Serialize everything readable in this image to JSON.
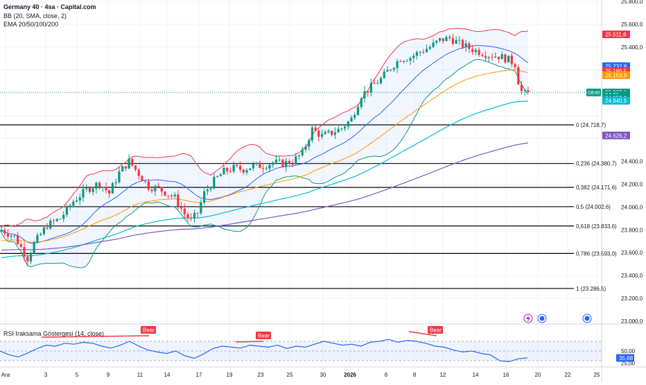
{
  "legend": {
    "symbol": "Germany 40 · 4sa · Capital.com",
    "bb": "BB (20, SMA, close, 2)",
    "ema": "EMA 20/50/100/200"
  },
  "rsi_legend": "RSI Iraksama Göstergesi (14, close)",
  "colors": {
    "up": "#089981",
    "down": "#f23645",
    "bb_band": "#f23645",
    "bb_basis": "#2962ff",
    "ema20": "#089981",
    "ema50": "#ff9800",
    "ema100": "#00bcd4",
    "ema200": "#7e57c2",
    "fib": "#000000",
    "rsi": "#2962ff",
    "bear_label": "#f23645"
  },
  "chart_data": [
    {
      "type": "candlestick",
      "title": "Germany 40 · 4sa · Capital.com",
      "x_tick_labels": [
        "Ara",
        "3",
        "5",
        "9",
        "11",
        "14",
        "17",
        "19",
        "23",
        "25",
        "30",
        "2026",
        "6",
        "8",
        "12",
        "14",
        "16",
        "20",
        "22",
        "25"
      ],
      "y_tick_labels": [
        "25.800,0",
        "25.600,0",
        "25.400,0",
        "24.400,0",
        "24.200,0",
        "24.000,0",
        "23.800,0",
        "23.600,0",
        "23.400,0",
        "23.200,0",
        "23.000,0"
      ],
      "ylim": [
        23000,
        25800
      ],
      "price_path": [
        [
          0,
          23800
        ],
        [
          4,
          23740
        ],
        [
          8,
          23550
        ],
        [
          10,
          23680
        ],
        [
          14,
          23840
        ],
        [
          18,
          23900
        ],
        [
          22,
          24050
        ],
        [
          26,
          24150
        ],
        [
          30,
          24210
        ],
        [
          33,
          24120
        ],
        [
          36,
          24300
        ],
        [
          39,
          24400
        ],
        [
          42,
          24290
        ],
        [
          45,
          24180
        ],
        [
          48,
          24160
        ],
        [
          50,
          24130
        ],
        [
          53,
          24080
        ],
        [
          56,
          23940
        ],
        [
          58,
          23880
        ],
        [
          60,
          23950
        ],
        [
          62,
          24120
        ],
        [
          65,
          24230
        ],
        [
          68,
          24310
        ],
        [
          71,
          24340
        ],
        [
          74,
          24330
        ],
        [
          77,
          24360
        ],
        [
          80,
          24360
        ],
        [
          83,
          24390
        ],
        [
          86,
          24380
        ],
        [
          89,
          24400
        ],
        [
          92,
          24470
        ],
        [
          95,
          24680
        ],
        [
          98,
          24620
        ],
        [
          101,
          24650
        ],
        [
          104,
          24690
        ],
        [
          107,
          24770
        ],
        [
          110,
          24980
        ],
        [
          113,
          25050
        ],
        [
          116,
          25120
        ],
        [
          119,
          25220
        ],
        [
          122,
          25300
        ],
        [
          125,
          25310
        ],
        [
          128,
          25360
        ],
        [
          131,
          25400
        ],
        [
          134,
          25460
        ],
        [
          137,
          25480
        ],
        [
          140,
          25430
        ],
        [
          143,
          25390
        ],
        [
          146,
          25360
        ],
        [
          149,
          25330
        ],
        [
          152,
          25320
        ],
        [
          155,
          25290
        ],
        [
          157,
          25250
        ],
        [
          158,
          25100
        ],
        [
          159,
          25010
        ],
        [
          160,
          24990
        ],
        [
          161,
          25003.1
        ]
      ],
      "fibonacci": [
        {
          "label": "0 (24.718,7)",
          "value": 24718.7
        },
        {
          "label": "0,236 (24.380,7)",
          "value": 24380.7
        },
        {
          "label": "0,382 (24.171,6)",
          "value": 24171.6
        },
        {
          "label": "0,5 (24.002,6)",
          "value": 24002.6
        },
        {
          "label": "0,618 (23.833,6)",
          "value": 23833.6
        },
        {
          "label": "0,786 (23.593,0)",
          "value": 23593.0
        },
        {
          "label": "1 (23.286,5)",
          "value": 23286.5
        }
      ],
      "price_badges": [
        {
          "text": "25.511,6",
          "value": 25511.6,
          "color": "#f23645"
        },
        {
          "text": "25.232,8",
          "value": 25232.8,
          "color": "#2962ff"
        },
        {
          "text": "25.189,5",
          "value": 25189.5,
          "color": "#f23645"
        },
        {
          "text": "25.153,9",
          "value": 25153.9,
          "color": "#ff9800"
        },
        {
          "text": "25.003,1",
          "value": 25003.1,
          "color": "#089981"
        },
        {
          "text": "04:21",
          "value": 24980,
          "color": "#089981"
        },
        {
          "text": "24.953,9",
          "value": 24953.9,
          "color": "#089981"
        },
        {
          "text": "24.940,5",
          "value": 24930,
          "color": "#00bcd4"
        },
        {
          "text": "24.626,2",
          "value": 24626.2,
          "color": "#7e57c2"
        }
      ],
      "symbol_tag": "DE40"
    },
    {
      "type": "line",
      "title": "RSI Iraksama Göstergesi (14, close)",
      "ylim": [
        20,
        80
      ],
      "y_tick_labels": [
        "50,00",
        "25,00"
      ],
      "overbought": 70,
      "oversold": 30,
      "values": [
        50,
        42,
        38,
        46,
        55,
        62,
        60,
        66,
        64,
        68,
        66,
        60,
        56,
        62,
        70,
        60,
        52,
        48,
        45,
        50,
        40,
        35,
        44,
        55,
        60,
        58,
        56,
        62,
        60,
        58,
        62,
        55,
        60,
        58,
        64,
        70,
        66,
        62,
        64,
        60,
        68,
        70,
        74,
        68,
        72,
        70,
        66,
        60,
        58,
        52,
        48,
        50,
        45,
        42,
        30,
        28,
        34,
        35.68
      ],
      "current": {
        "text": "35,68",
        "value": 35.68
      },
      "annotations": [
        "Bear",
        "Bear",
        "Bear"
      ]
    }
  ]
}
